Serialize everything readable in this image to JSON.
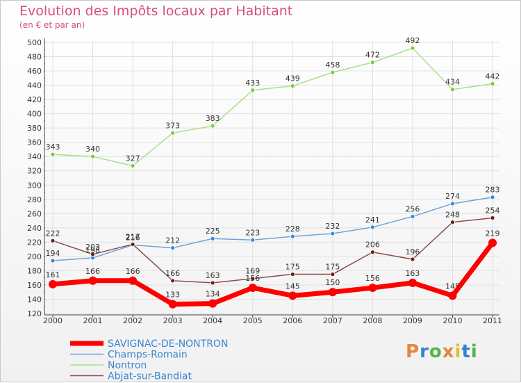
{
  "header": {
    "title": "Evolution des Impôts locaux par Habitant",
    "subtitle": "(en € et par an)"
  },
  "brand": {
    "letters": [
      "P",
      "r",
      "o",
      "x",
      "i",
      "t",
      "i"
    ],
    "colors": [
      "#e8843a",
      "#2f85c8",
      "#55b345",
      "#e8843a",
      "#d6c52d",
      "#2f85c8",
      "#55b345"
    ]
  },
  "colors": {
    "title": "#d64d7e",
    "grid": "#e0e0e0",
    "axis_tick": "#d64d7e"
  },
  "chart_data": {
    "type": "line",
    "title": "Evolution des Impôts locaux par Habitant",
    "subtitle": "(en € et par an)",
    "xlabel": "",
    "ylabel": "",
    "x": [
      2000,
      2001,
      2002,
      2003,
      2004,
      2005,
      2006,
      2007,
      2008,
      2009,
      2010,
      2011
    ],
    "ylim": [
      120,
      500
    ],
    "yticks": [
      120,
      140,
      160,
      180,
      200,
      220,
      240,
      260,
      280,
      300,
      320,
      340,
      360,
      380,
      400,
      420,
      440,
      460,
      480,
      500
    ],
    "grid": true,
    "legend_position": "bottom-left",
    "series": [
      {
        "name": "SAVIGNAC-DE-NONTRON",
        "color": "#ff0000",
        "marker": "#ff0000",
        "emphasis": true,
        "values": [
          161,
          166,
          166,
          133,
          134,
          156,
          145,
          150,
          156,
          163,
          145,
          219
        ]
      },
      {
        "name": "Champs-Romain",
        "color": "#6fa3d6",
        "marker": "#3a87d4",
        "emphasis": false,
        "values": [
          194,
          198,
          216,
          212,
          225,
          223,
          228,
          232,
          241,
          256,
          274,
          283
        ]
      },
      {
        "name": "Nontron",
        "color": "#a8e08a",
        "marker": "#78cc3c",
        "emphasis": false,
        "values": [
          343,
          340,
          327,
          373,
          383,
          433,
          439,
          458,
          472,
          492,
          434,
          442
        ]
      },
      {
        "name": "Abjat-sur-Bandiat",
        "color": "#8b4a4a",
        "marker": "#6e1d1d",
        "emphasis": false,
        "values": [
          222,
          203,
          217,
          166,
          163,
          169,
          175,
          175,
          206,
          196,
          248,
          254
        ]
      }
    ]
  }
}
